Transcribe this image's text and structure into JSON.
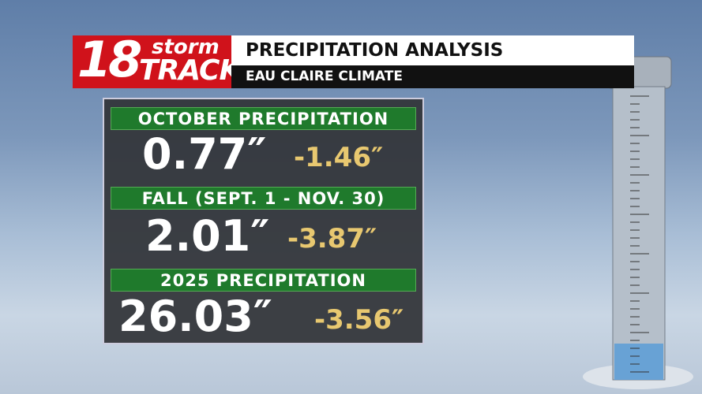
{
  "logo": {
    "number": "18",
    "word1": "storm",
    "word2": "TRACK"
  },
  "header": {
    "title": "PRECIPITATION ANALYSIS",
    "subtitle": "EAU CLAIRE CLIMATE"
  },
  "sections": [
    {
      "label": "OCTOBER PRECIPITATION",
      "total": "0.77″",
      "departure": "-1.46″"
    },
    {
      "label": "FALL (SEPT. 1 -  NOV. 30)",
      "total": "2.01″",
      "departure": "-3.87″"
    },
    {
      "label": "2025 PRECIPITATION",
      "total": "26.03″",
      "departure": "-3.56″"
    }
  ]
}
